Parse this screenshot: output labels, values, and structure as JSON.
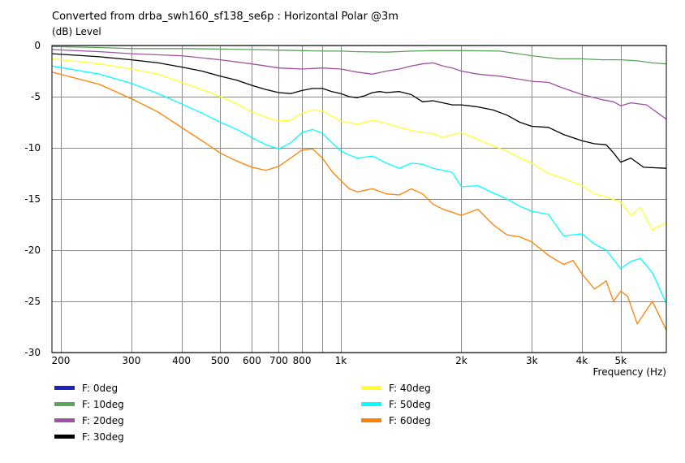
{
  "chart_data": {
    "type": "line",
    "title": "Converted from drba_swh160_sf138_se6p : Horizontal Polar @3m",
    "ylabel": "(dB)  Level",
    "xlabel": "Frequency  (Hz)",
    "xscale": "log",
    "xlim": [
      190,
      6500
    ],
    "ylim": [
      -30,
      0
    ],
    "grid": true,
    "legend_position": "bottom",
    "y_ticks": [
      0,
      -5,
      -10,
      -15,
      -20,
      -25,
      -30
    ],
    "y_tick_labels": [
      "0",
      "-5",
      "-10",
      "-15",
      "-20",
      "-25",
      "-30"
    ],
    "x_ticks": [
      200,
      300,
      400,
      500,
      600,
      700,
      800,
      1000,
      2000,
      3000,
      4000,
      5000
    ],
    "x_tick_labels": [
      "200",
      "300",
      "400",
      "500",
      "600",
      "700",
      "800",
      "1k",
      "2k",
      "3k",
      "4k",
      "5k"
    ],
    "x_minor_ticks": [
      900
    ],
    "series": [
      {
        "name": "F: 0deg",
        "color": "#2020c0",
        "x": [],
        "y": []
      },
      {
        "name": "F: 10deg",
        "color": "#5aa55a",
        "x": [
          190,
          250,
          300,
          400,
          500,
          600,
          700,
          800,
          900,
          1000,
          1100,
          1300,
          1500,
          1700,
          2000,
          2500,
          3000,
          3500,
          4000,
          4500,
          5000,
          5500,
          6000,
          6500
        ],
        "y": [
          -0.1,
          -0.2,
          -0.3,
          -0.3,
          -0.35,
          -0.4,
          -0.45,
          -0.5,
          -0.55,
          -0.55,
          -0.6,
          -0.65,
          -0.55,
          -0.5,
          -0.5,
          -0.55,
          -1.0,
          -1.3,
          -1.3,
          -1.4,
          -1.4,
          -1.5,
          -1.7,
          -1.8
        ]
      },
      {
        "name": "F: 20deg",
        "color": "#a050a0",
        "x": [
          190,
          250,
          300,
          400,
          500,
          600,
          650,
          700,
          800,
          900,
          1000,
          1100,
          1200,
          1300,
          1400,
          1500,
          1600,
          1700,
          1800,
          1900,
          2000,
          2200,
          2500,
          2800,
          3000,
          3300,
          3500,
          4000,
          4200,
          4500,
          4800,
          5000,
          5300,
          5800,
          6500
        ],
        "y": [
          -0.4,
          -0.6,
          -0.8,
          -1.0,
          -1.4,
          -1.8,
          -2.0,
          -2.2,
          -2.3,
          -2.2,
          -2.3,
          -2.6,
          -2.8,
          -2.5,
          -2.3,
          -2.0,
          -1.8,
          -1.7,
          -2.0,
          -2.2,
          -2.5,
          -2.8,
          -3.0,
          -3.3,
          -3.5,
          -3.6,
          -4.0,
          -4.8,
          -5.0,
          -5.3,
          -5.5,
          -5.9,
          -5.6,
          -5.8,
          -7.2
        ]
      },
      {
        "name": "F: 30deg",
        "color": "#000000",
        "x": [
          190,
          250,
          300,
          350,
          400,
          450,
          500,
          550,
          600,
          650,
          700,
          750,
          800,
          850,
          900,
          950,
          1000,
          1050,
          1100,
          1150,
          1200,
          1250,
          1300,
          1400,
          1500,
          1600,
          1700,
          1800,
          1900,
          2000,
          2100,
          2200,
          2400,
          2600,
          2800,
          3000,
          3300,
          3600,
          4000,
          4300,
          4600,
          4800,
          5000,
          5300,
          5700,
          6500
        ],
        "y": [
          -0.8,
          -1.1,
          -1.4,
          -1.7,
          -2.1,
          -2.5,
          -3.0,
          -3.4,
          -3.9,
          -4.3,
          -4.6,
          -4.7,
          -4.4,
          -4.2,
          -4.2,
          -4.5,
          -4.7,
          -5.0,
          -5.1,
          -4.9,
          -4.6,
          -4.5,
          -4.6,
          -4.5,
          -4.8,
          -5.5,
          -5.4,
          -5.6,
          -5.8,
          -5.8,
          -5.9,
          -6.0,
          -6.3,
          -6.8,
          -7.5,
          -7.9,
          -8.0,
          -8.7,
          -9.3,
          -9.6,
          -9.7,
          -10.5,
          -11.4,
          -11.0,
          -11.9,
          -12.0
        ]
      },
      {
        "name": "F: 40deg",
        "color": "#ffff30",
        "x": [
          190,
          250,
          300,
          350,
          400,
          450,
          500,
          550,
          600,
          650,
          700,
          750,
          800,
          850,
          900,
          950,
          1000,
          1100,
          1200,
          1300,
          1400,
          1500,
          1600,
          1700,
          1800,
          1900,
          2000,
          2200,
          2400,
          2600,
          2800,
          3000,
          3300,
          3600,
          4000,
          4300,
          4600,
          5000,
          5300,
          5600,
          6000,
          6500
        ],
        "y": [
          -1.3,
          -1.8,
          -2.3,
          -2.8,
          -3.6,
          -4.3,
          -5.0,
          -5.7,
          -6.5,
          -7.0,
          -7.4,
          -7.3,
          -6.6,
          -6.3,
          -6.4,
          -6.9,
          -7.4,
          -7.7,
          -7.3,
          -7.6,
          -8.0,
          -8.3,
          -8.5,
          -8.6,
          -9.0,
          -8.7,
          -8.5,
          -9.2,
          -9.8,
          -10.3,
          -11.0,
          -11.5,
          -12.5,
          -13.0,
          -13.7,
          -14.5,
          -14.8,
          -15.3,
          -16.6,
          -15.8,
          -18.0,
          -17.3
        ]
      },
      {
        "name": "F: 50deg",
        "color": "#00ffff",
        "x": [
          190,
          250,
          300,
          350,
          400,
          450,
          500,
          550,
          600,
          650,
          700,
          750,
          800,
          850,
          900,
          950,
          1000,
          1050,
          1100,
          1200,
          1300,
          1400,
          1500,
          1600,
          1700,
          1800,
          1900,
          2000,
          2200,
          2400,
          2600,
          2800,
          3000,
          3300,
          3600,
          4000,
          4300,
          4600,
          5000,
          5300,
          5600,
          6000,
          6500
        ],
        "y": [
          -2.0,
          -2.8,
          -3.7,
          -4.7,
          -5.7,
          -6.6,
          -7.5,
          -8.2,
          -9.0,
          -9.7,
          -10.1,
          -9.5,
          -8.5,
          -8.2,
          -8.6,
          -9.5,
          -10.3,
          -10.7,
          -11.0,
          -10.8,
          -11.5,
          -12.0,
          -11.5,
          -11.6,
          -12.0,
          -12.2,
          -12.4,
          -13.8,
          -13.7,
          -14.4,
          -15.0,
          -15.7,
          -16.2,
          -16.5,
          -18.6,
          -18.4,
          -19.4,
          -20.0,
          -21.8,
          -21.1,
          -20.8,
          -22.2,
          -25.2
        ]
      },
      {
        "name": "F: 60deg",
        "color": "#ff8000",
        "x": [
          190,
          250,
          300,
          350,
          400,
          450,
          500,
          550,
          600,
          650,
          700,
          750,
          800,
          850,
          900,
          950,
          1000,
          1050,
          1100,
          1200,
          1300,
          1400,
          1500,
          1600,
          1700,
          1800,
          1900,
          2000,
          2200,
          2400,
          2600,
          2800,
          3000,
          3300,
          3600,
          3800,
          4000,
          4300,
          4600,
          4800,
          5000,
          5200,
          5500,
          6000,
          6500
        ],
        "y": [
          -2.6,
          -3.8,
          -5.2,
          -6.5,
          -8.0,
          -9.3,
          -10.5,
          -11.3,
          -11.9,
          -12.2,
          -11.8,
          -11.0,
          -10.2,
          -10.1,
          -11.0,
          -12.3,
          -13.2,
          -14.0,
          -14.3,
          -14.0,
          -14.5,
          -14.6,
          -14.0,
          -14.5,
          -15.5,
          -16.0,
          -16.3,
          -16.6,
          -16.0,
          -17.5,
          -18.5,
          -18.7,
          -19.2,
          -20.5,
          -21.4,
          -21.0,
          -22.3,
          -23.8,
          -23.0,
          -25.0,
          -24.0,
          -24.5,
          -27.2,
          -25.0,
          -27.8
        ]
      }
    ]
  }
}
